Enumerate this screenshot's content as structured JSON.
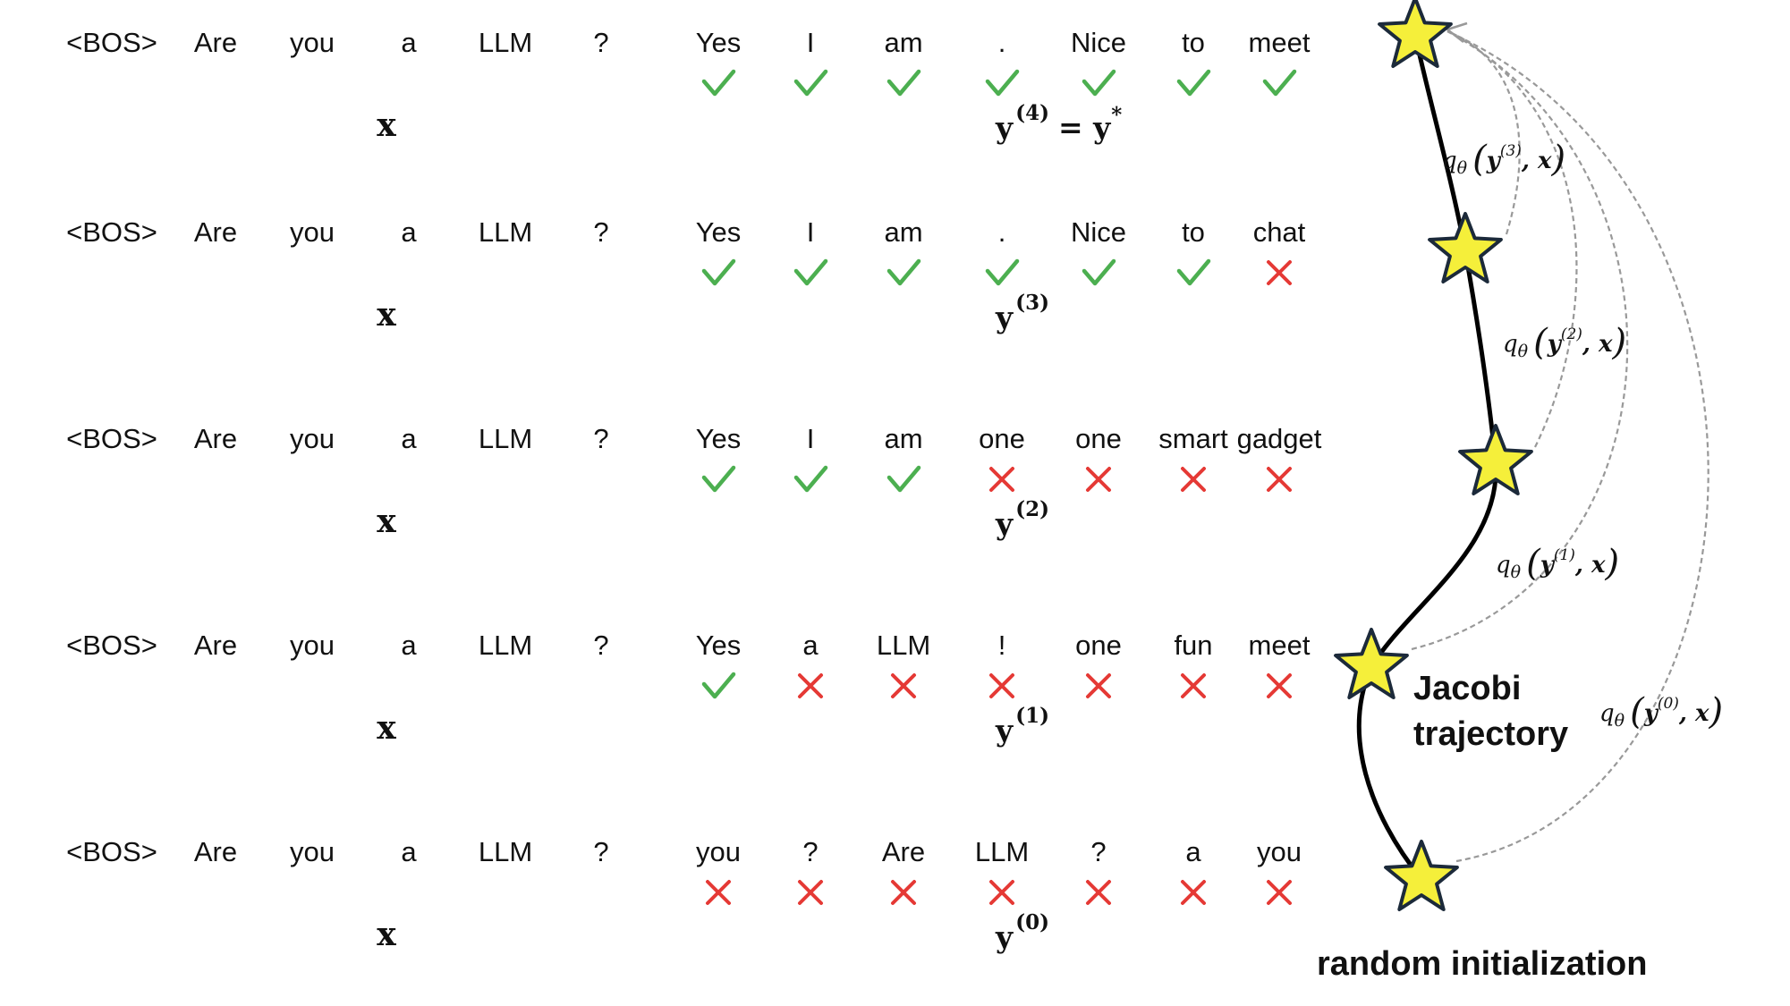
{
  "rows": [
    {
      "prompt": [
        "<BOS>",
        "Are",
        "you",
        "a",
        "LLM",
        "?"
      ],
      "output": [
        "Yes",
        "I",
        "am",
        ".",
        "Nice",
        "to",
        "meet"
      ],
      "marks": [
        "check",
        "check",
        "check",
        "check",
        "check",
        "check",
        "check"
      ],
      "x_label": "x",
      "y_label": "y",
      "y_sup": "(4)",
      "y_suffix": "= y",
      "y_suffix_sup": "*"
    },
    {
      "prompt": [
        "<BOS>",
        "Are",
        "you",
        "a",
        "LLM",
        "?"
      ],
      "output": [
        "Yes",
        "I",
        "am",
        ".",
        "Nice",
        "to",
        "chat"
      ],
      "marks": [
        "check",
        "check",
        "check",
        "check",
        "check",
        "check",
        "cross"
      ],
      "x_label": "x",
      "y_label": "y",
      "y_sup": "(3)"
    },
    {
      "prompt": [
        "<BOS>",
        "Are",
        "you",
        "a",
        "LLM",
        "?"
      ],
      "output": [
        "Yes",
        "I",
        "am",
        "one",
        "one",
        "smart",
        "gadget"
      ],
      "marks": [
        "check",
        "check",
        "check",
        "cross",
        "cross",
        "cross",
        "cross"
      ],
      "x_label": "x",
      "y_label": "y",
      "y_sup": "(2)"
    },
    {
      "prompt": [
        "<BOS>",
        "Are",
        "you",
        "a",
        "LLM",
        "?"
      ],
      "output": [
        "Yes",
        "a",
        "LLM",
        "!",
        "one",
        "fun",
        "meet"
      ],
      "marks": [
        "check",
        "cross",
        "cross",
        "cross",
        "cross",
        "cross",
        "cross"
      ],
      "x_label": "x",
      "y_label": "y",
      "y_sup": "(1)"
    },
    {
      "prompt": [
        "<BOS>",
        "Are",
        "you",
        "a",
        "LLM",
        "?"
      ],
      "output": [
        "you",
        "?",
        "Are",
        "LLM",
        "?",
        "a",
        "you"
      ],
      "marks": [
        "cross",
        "cross",
        "cross",
        "cross",
        "cross",
        "cross",
        "cross"
      ],
      "x_label": "x",
      "y_label": "y",
      "y_sup": "(0)"
    }
  ],
  "q_labels": [
    {
      "q": "q",
      "sub": "θ",
      "y": "y",
      "sup": "(3)",
      "x": "x"
    },
    {
      "q": "q",
      "sub": "θ",
      "y": "y",
      "sup": "(2)",
      "x": "x"
    },
    {
      "q": "q",
      "sub": "θ",
      "y": "y",
      "sup": "(1)",
      "x": "x"
    },
    {
      "q": "q",
      "sub": "θ",
      "y": "y",
      "sup": "(0)",
      "x": "x"
    }
  ],
  "trajectory_label_line1": "Jacobi",
  "trajectory_label_line2": "trajectory",
  "init_label": "random initialization",
  "colors": {
    "check": "#4caf50",
    "cross": "#e53935",
    "star_fill": "#f5ef3a",
    "star_stroke": "#1c2a3a",
    "trajectory": "#000000",
    "arc": "#999999"
  }
}
